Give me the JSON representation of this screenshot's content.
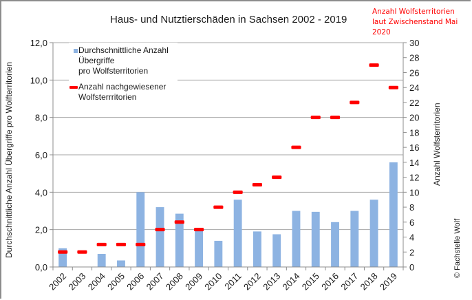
{
  "chart_data": {
    "type": "bar",
    "title": "Haus- und Nutztierschäden  in Sachsen 2002 - 2019",
    "note": [
      "Anzahl Wolfsterritorien",
      "laut Zwischenstand Mai",
      "2020"
    ],
    "copyright": "© Fachstelle Wolf",
    "categories": [
      "2002",
      "2003",
      "2004",
      "2005",
      "2006",
      "2007",
      "2008",
      "2009",
      "2010",
      "2011",
      "2012",
      "2013",
      "2014",
      "2015",
      "2016",
      "2017",
      "2018",
      "2019"
    ],
    "series": [
      {
        "name": "Durchschnittliche Anzahl Übergriffe pro Wolfsterritorien",
        "type": "bar",
        "axis": "left",
        "color": "#8db3e2",
        "values": [
          1.0,
          0,
          0.7,
          0.35,
          4.0,
          3.2,
          2.85,
          2.0,
          1.4,
          3.6,
          1.9,
          1.75,
          3.0,
          2.95,
          2.4,
          3.0,
          3.6,
          5.6
        ]
      },
      {
        "name": "Anzahl nachgewiesener Wolfsterrritorien",
        "type": "marker-dash",
        "axis": "right",
        "color": "#ff0000",
        "values": [
          2,
          2,
          3,
          3,
          3,
          5,
          6,
          5,
          8,
          10,
          11,
          12,
          16,
          20,
          20,
          22,
          27,
          24
        ]
      }
    ],
    "legend": {
      "position": "top-left",
      "items": [
        {
          "line1": "Durchschnittliche Anzahl Übergriffe",
          "line2": "pro Wolfsterritorien"
        },
        {
          "line1": "Anzahl nachgewiesener",
          "line2": "Wolfsterrritorien"
        }
      ]
    },
    "ylabel_left": "Durchschnittliche Anzahl Übergriffe  pro Wolfterritorien",
    "ylabel_right": "Anzahl Wolfsterritorien",
    "ylim_left": [
      0,
      12
    ],
    "ylim_right": [
      0,
      30
    ],
    "yticks_left": [
      "0,0",
      "2,0",
      "4,0",
      "6,0",
      "8,0",
      "10,0",
      "12,0"
    ],
    "yticks_right": [
      "0",
      "2",
      "4",
      "6",
      "8",
      "10",
      "12",
      "14",
      "16",
      "18",
      "20",
      "22",
      "24",
      "26",
      "28",
      "30"
    ],
    "grid": true
  }
}
